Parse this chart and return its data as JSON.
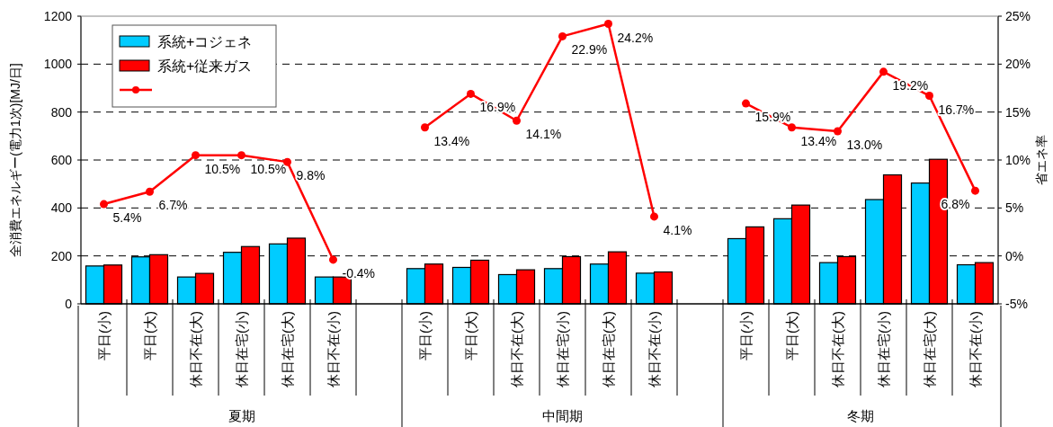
{
  "chart_data": {
    "type": "bar",
    "ylabel": "全消費エネルギー(電力1次)[MJ/日]",
    "y2label": "省エネ率",
    "categories": [
      "平日(小)",
      "平日(大)",
      "休日不在(大)",
      "休日在宅(小)",
      "休日在宅(大)",
      "休日不在(小)",
      null,
      "平日(小)",
      "平日(大)",
      "休日不在(大)",
      "休日在宅(小)",
      "休日在宅(大)",
      "休日不在(小)",
      null,
      "平日(小)",
      "平日(大)",
      "休日不在(大)",
      "休日在宅(小)",
      "休日在宅(大)",
      "休日不在(小)"
    ],
    "annotations": [
      "夏期",
      "中間期",
      "冬期"
    ],
    "series": [
      {
        "name": "系統+コジェネ",
        "color": "#00ccff",
        "values": [
          158,
          196,
          112,
          215,
          250,
          112,
          null,
          147,
          152,
          122,
          147,
          166,
          128,
          null,
          272,
          355,
          172,
          435,
          504,
          163
        ]
      },
      {
        "name": "系統+従来ガス",
        "color": "#ff0000",
        "values": [
          162,
          205,
          127,
          239,
          274,
          112,
          null,
          166,
          182,
          142,
          197,
          217,
          133,
          null,
          321,
          412,
          197,
          538,
          603,
          172
        ]
      },
      {
        "type": "line",
        "axis": "y2",
        "color": "#ff0000",
        "marker": "circle",
        "line_style": "solid",
        "values": [
          5.4,
          6.7,
          10.5,
          10.5,
          9.8,
          -0.4,
          null,
          13.4,
          16.9,
          14.1,
          22.9,
          24.2,
          4.1,
          null,
          15.9,
          13.4,
          13.0,
          19.2,
          16.7,
          6.8
        ],
        "value_labels": [
          "5.4%",
          "6.7%",
          "10.5%",
          "10.5%",
          "9.8%",
          "-0.4%",
          null,
          "13.4%",
          "16.9%",
          "14.1%",
          "22.9%",
          "24.2%",
          "4.1%",
          null,
          "15.9%",
          "13.4%",
          "13.0%",
          "19.2%",
          "16.7%",
          "6.8%"
        ]
      }
    ],
    "ylim": [
      0,
      1200
    ],
    "yticks": [
      0,
      200,
      400,
      600,
      800,
      1000,
      1200
    ],
    "y2lim": [
      -5,
      25
    ],
    "y2ticks": [
      {
        "value": -5,
        "label": "-5%"
      },
      {
        "value": 0,
        "label": "0%"
      },
      {
        "value": 5,
        "label": "5%"
      },
      {
        "value": 10,
        "label": "10%"
      },
      {
        "value": 15,
        "label": "15%"
      },
      {
        "value": 20,
        "label": "20%"
      },
      {
        "value": 25,
        "label": "25%"
      }
    ],
    "grid": "y",
    "legend": "top left"
  }
}
